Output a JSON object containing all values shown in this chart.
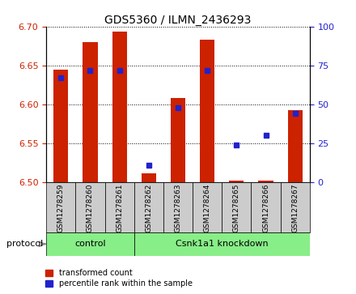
{
  "title": "GDS5360 / ILMN_2436293",
  "samples": [
    "GSM1278259",
    "GSM1278260",
    "GSM1278261",
    "GSM1278262",
    "GSM1278263",
    "GSM1278264",
    "GSM1278265",
    "GSM1278266",
    "GSM1278267"
  ],
  "red_values": [
    6.645,
    6.68,
    6.693,
    6.511,
    6.608,
    6.683,
    6.502,
    6.502,
    6.593
  ],
  "blue_percentiles": [
    67,
    72,
    72,
    11,
    48,
    72,
    24,
    30,
    44
  ],
  "ylim_left": [
    6.5,
    6.7
  ],
  "ylim_right": [
    0,
    100
  ],
  "yticks_left": [
    6.5,
    6.55,
    6.6,
    6.65,
    6.7
  ],
  "yticks_right": [
    0,
    25,
    50,
    75,
    100
  ],
  "n_control": 3,
  "n_knockdown": 6,
  "control_label": "control",
  "knockdown_label": "Csnk1a1 knockdown",
  "protocol_label": "protocol",
  "legend_red": "transformed count",
  "legend_blue": "percentile rank within the sample",
  "red_color": "#cc2200",
  "blue_color": "#2222cc",
  "bar_width": 0.5,
  "green_color": "#88ee88",
  "gray_color": "#cccccc",
  "background_color": "#ffffff",
  "left_label_color": "#cc2200",
  "right_label_color": "#2222cc"
}
